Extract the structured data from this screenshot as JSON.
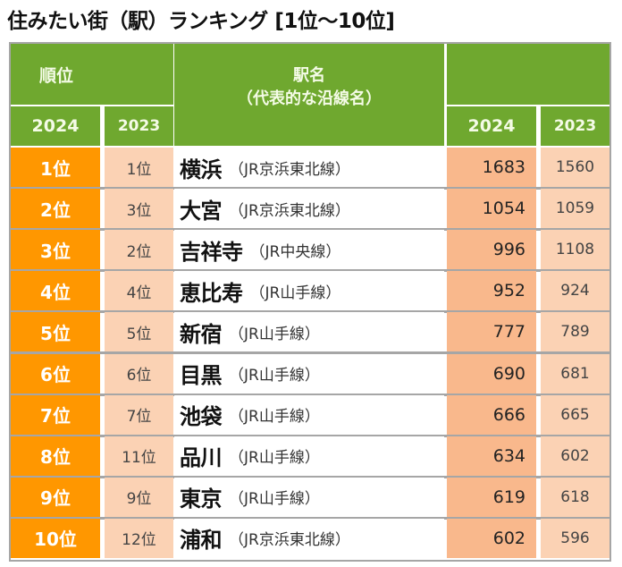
{
  "title": "住みたい街（駅）ランキング [1位～10位]",
  "header": {
    "rank": "順位",
    "rank_2024": "2024",
    "rank_2023": "2023",
    "station_line1": "駅名",
    "station_line2": "（代表的な沿線名）",
    "score_2024": "2024",
    "score_2023": "2023"
  },
  "colors": {
    "header_green": "#6fa82f",
    "rank_orange": "#ff9700",
    "peach_light": "#fbd2b4",
    "peach_dark": "#f9b88c"
  },
  "rows": [
    {
      "rank_2024": "1位",
      "rank_2023": "1位",
      "station": "横浜",
      "line": "（JR京浜東北線）",
      "score_2024": "1683",
      "score_2023": "1560"
    },
    {
      "rank_2024": "2位",
      "rank_2023": "3位",
      "station": "大宮",
      "line": "（JR京浜東北線）",
      "score_2024": "1054",
      "score_2023": "1059"
    },
    {
      "rank_2024": "3位",
      "rank_2023": "2位",
      "station": "吉祥寺",
      "line": "（JR中央線）",
      "score_2024": "996",
      "score_2023": "1108"
    },
    {
      "rank_2024": "4位",
      "rank_2023": "4位",
      "station": "恵比寿",
      "line": "（JR山手線）",
      "score_2024": "952",
      "score_2023": "924"
    },
    {
      "rank_2024": "5位",
      "rank_2023": "5位",
      "station": "新宿",
      "line": "（JR山手線）",
      "score_2024": "777",
      "score_2023": "789"
    },
    {
      "rank_2024": "6位",
      "rank_2023": "6位",
      "station": "目黒",
      "line": "（JR山手線）",
      "score_2024": "690",
      "score_2023": "681"
    },
    {
      "rank_2024": "7位",
      "rank_2023": "7位",
      "station": "池袋",
      "line": "（JR山手線）",
      "score_2024": "666",
      "score_2023": "665"
    },
    {
      "rank_2024": "8位",
      "rank_2023": "11位",
      "station": "品川",
      "line": "（JR山手線）",
      "score_2024": "634",
      "score_2023": "602"
    },
    {
      "rank_2024": "9位",
      "rank_2023": "9位",
      "station": "東京",
      "line": "（JR山手線）",
      "score_2024": "619",
      "score_2023": "618"
    },
    {
      "rank_2024": "10位",
      "rank_2023": "12位",
      "station": "浦和",
      "line": "（JR京浜東北線）",
      "score_2024": "602",
      "score_2023": "596"
    }
  ]
}
